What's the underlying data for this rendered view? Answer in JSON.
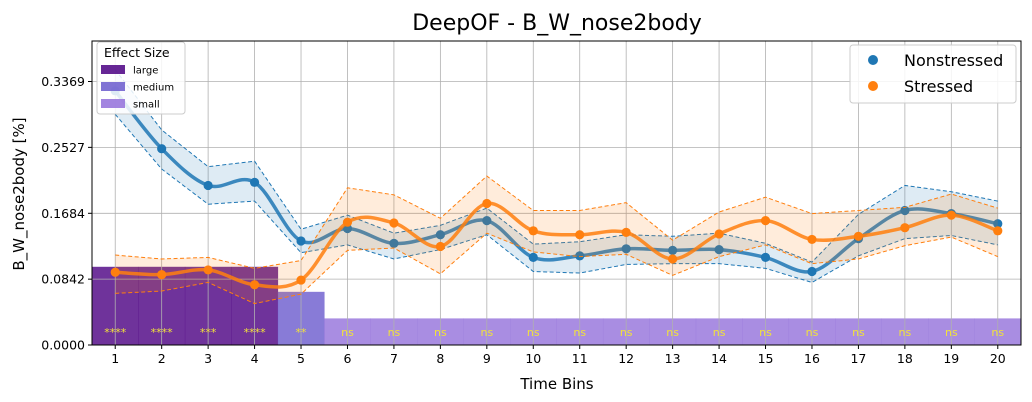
{
  "chart_data": {
    "type": "line",
    "title": "DeepOF - B_W_nose2body",
    "xlabel": "Time Bins",
    "ylabel": "B_W_nose2body [%]",
    "x": [
      1,
      2,
      3,
      4,
      5,
      6,
      7,
      8,
      9,
      10,
      11,
      12,
      13,
      14,
      15,
      16,
      17,
      18,
      19,
      20
    ],
    "xlim": [
      0.5,
      20.5
    ],
    "ylim": [
      0,
      0.3887
    ],
    "yticks": [
      0.0,
      0.0842,
      0.1684,
      0.2527,
      0.3369
    ],
    "yticklabels": [
      "0.0000",
      "0.0842",
      "0.1684",
      "0.2527",
      "0.3369"
    ],
    "grid": true,
    "legend_position": "top-right",
    "series": [
      {
        "name": "Nonstressed",
        "color": "#1f77b4",
        "values": [
          0.325,
          0.251,
          0.204,
          0.208,
          0.133,
          0.149,
          0.13,
          0.141,
          0.159,
          0.112,
          0.114,
          0.123,
          0.121,
          0.122,
          0.112,
          0.094,
          0.136,
          0.172,
          0.168,
          0.155
        ],
        "upper": [
          0.352,
          0.275,
          0.228,
          0.235,
          0.148,
          0.166,
          0.143,
          0.153,
          0.175,
          0.129,
          0.132,
          0.141,
          0.139,
          0.143,
          0.13,
          0.106,
          0.167,
          0.204,
          0.196,
          0.184
        ],
        "lower": [
          0.295,
          0.225,
          0.18,
          0.184,
          0.118,
          0.128,
          0.11,
          0.122,
          0.141,
          0.094,
          0.092,
          0.103,
          0.104,
          0.104,
          0.098,
          0.08,
          0.114,
          0.136,
          0.14,
          0.128
        ]
      },
      {
        "name": "Stressed",
        "color": "#ff7f0e",
        "values": [
          0.093,
          0.09,
          0.096,
          0.077,
          0.083,
          0.157,
          0.156,
          0.126,
          0.181,
          0.146,
          0.141,
          0.144,
          0.11,
          0.142,
          0.159,
          0.135,
          0.139,
          0.15,
          0.166,
          0.146
        ],
        "upper": [
          0.115,
          0.11,
          0.112,
          0.098,
          0.108,
          0.201,
          0.192,
          0.162,
          0.216,
          0.172,
          0.172,
          0.182,
          0.134,
          0.17,
          0.189,
          0.168,
          0.172,
          0.176,
          0.193,
          0.175
        ],
        "lower": [
          0.066,
          0.069,
          0.08,
          0.053,
          0.065,
          0.121,
          0.124,
          0.091,
          0.143,
          0.119,
          0.113,
          0.116,
          0.089,
          0.113,
          0.128,
          0.104,
          0.11,
          0.127,
          0.138,
          0.113
        ]
      }
    ],
    "effect_size": {
      "title": "Effect Size",
      "position": "top-left",
      "levels": [
        {
          "key": "large",
          "label": "large",
          "color": "#4b0082",
          "height": 0.1
        },
        {
          "key": "medium",
          "label": "medium",
          "color": "#6a5acd",
          "height": 0.068
        },
        {
          "key": "small",
          "label": "small",
          "color": "#9370db",
          "height": 0.034
        }
      ],
      "bins": [
        "large",
        "large",
        "large",
        "large",
        "medium",
        "small",
        "small",
        "small",
        "small",
        "small",
        "small",
        "small",
        "small",
        "small",
        "small",
        "small",
        "small",
        "small",
        "small",
        "small"
      ]
    },
    "significance": [
      "****",
      "****",
      "***",
      "****",
      "**",
      "ns",
      "ns",
      "ns",
      "ns",
      "ns",
      "ns",
      "ns",
      "ns",
      "ns",
      "ns",
      "ns",
      "ns",
      "ns",
      "ns",
      "ns"
    ]
  }
}
